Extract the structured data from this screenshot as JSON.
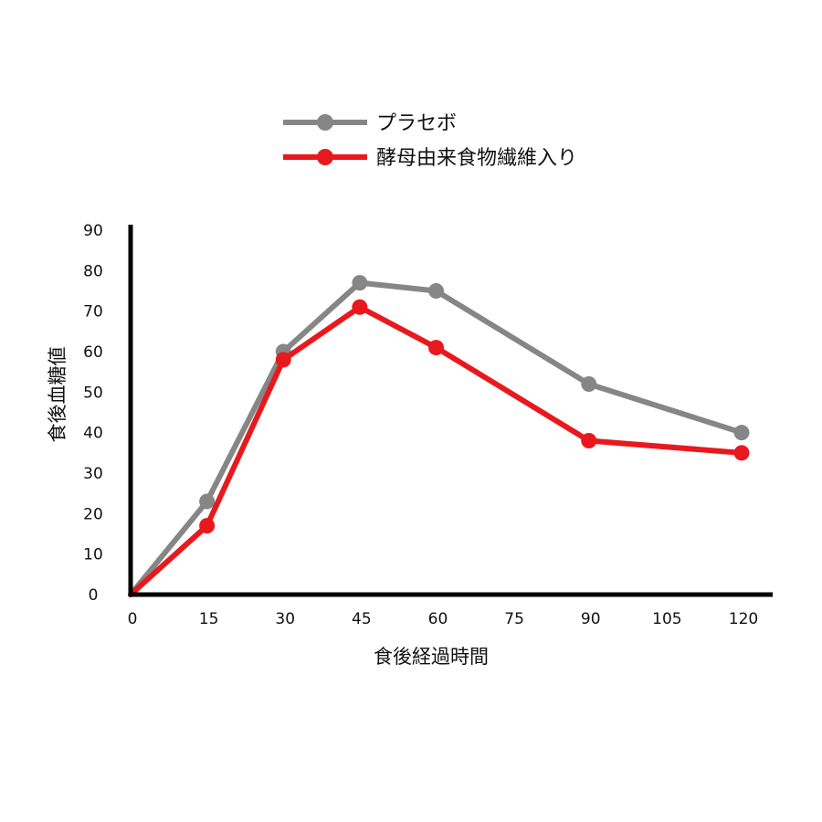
{
  "chart_data": {
    "type": "line",
    "title": "",
    "xlabel": "食後経過時間",
    "ylabel": "食後血糖値",
    "x": [
      0,
      15,
      30,
      45,
      60,
      90,
      120
    ],
    "x_ticks": [
      "0",
      "15",
      "30",
      "45",
      "60",
      "75",
      "90",
      "105",
      "120"
    ],
    "y_ticks": [
      "0",
      "10",
      "20",
      "30",
      "40",
      "50",
      "60",
      "70",
      "80",
      "90"
    ],
    "xlim": [
      0,
      120
    ],
    "ylim": [
      0,
      90
    ],
    "grid": false,
    "legend_position": "top",
    "series": [
      {
        "name": "プラセボ",
        "color": "#868686",
        "values": [
          0,
          23,
          60,
          77,
          75,
          52,
          40
        ]
      },
      {
        "name": "酵母由来食物繊維入り",
        "color": "#e8191e",
        "values": [
          0,
          17,
          58,
          71,
          61,
          38,
          35
        ]
      }
    ]
  }
}
